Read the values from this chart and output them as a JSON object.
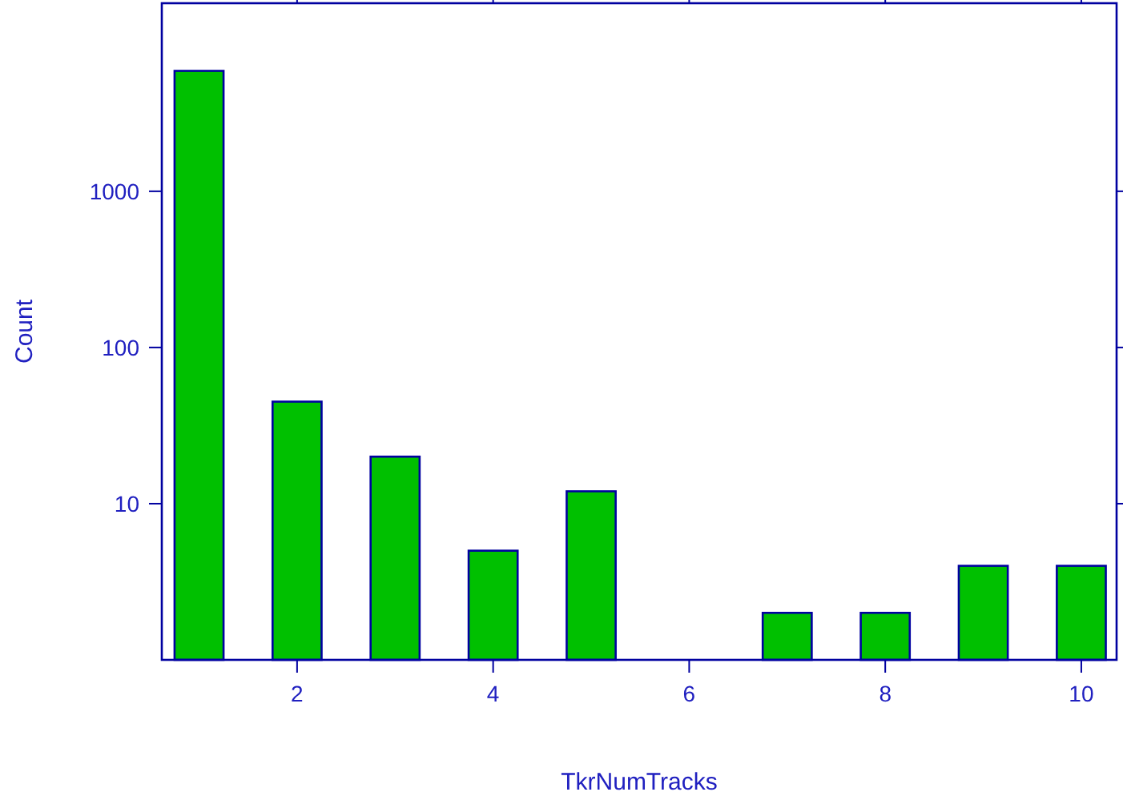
{
  "chart_data": {
    "type": "bar",
    "xlabel": "TkrNumTracks",
    "ylabel": "Count",
    "x": [
      1,
      2,
      3,
      4,
      5,
      6,
      7,
      8,
      9,
      10
    ],
    "values": [
      5900,
      45,
      20,
      5,
      12,
      1,
      2,
      2,
      4,
      4
    ],
    "color": "#00c000",
    "log": true,
    "ylim": [
      1,
      16000
    ],
    "yticks": [
      10,
      100,
      1000
    ],
    "xlim": [
      0.62,
      10.36
    ],
    "xticks": [
      2,
      4,
      6,
      8,
      10
    ],
    "grid": false
  }
}
